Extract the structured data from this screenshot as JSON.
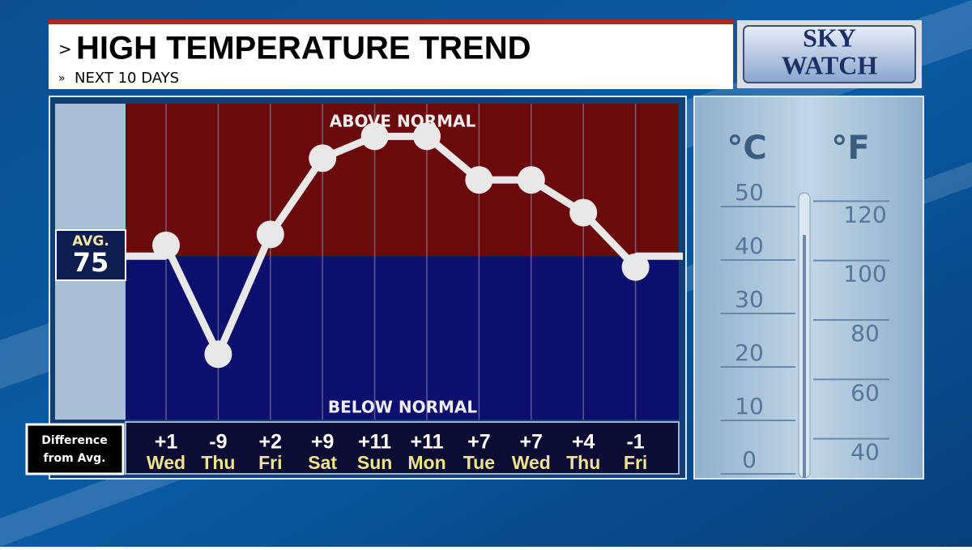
{
  "header": {
    "title": "HIGH TEMPERATURE TREND",
    "subtitle": "NEXT 10 DAYS"
  },
  "logo": {
    "line1": "SKY",
    "line2": "WATCH"
  },
  "chart_data": {
    "type": "line",
    "above_label": "ABOVE NORMAL",
    "below_label": "BELOW NORMAL",
    "average": {
      "label": "AVG.",
      "value": 75
    },
    "row_label": "Difference from Avg.",
    "categories": [
      "Wed",
      "Thu",
      "Fri",
      "Sat",
      "Sun",
      "Mon",
      "Tue",
      "Wed",
      "Thu",
      "Fri"
    ],
    "values": [
      1,
      -9,
      2,
      9,
      11,
      11,
      7,
      7,
      4,
      -1
    ],
    "value_labels": [
      "+1",
      "-9",
      "+2",
      "+9",
      "+11",
      "+11",
      "+7",
      "+7",
      "+4",
      "-1"
    ],
    "color": "#e8e8e8",
    "above_color": "#6b0a0c",
    "below_color": "#0c0f6e",
    "ylim": [
      -15,
      14
    ]
  },
  "thermometer": {
    "celsius_label": "°C",
    "fahrenheit_label": "°F",
    "celsius": [
      50,
      40,
      30,
      20,
      10,
      0
    ],
    "fahrenheit": [
      120,
      100,
      80,
      60,
      40
    ]
  }
}
